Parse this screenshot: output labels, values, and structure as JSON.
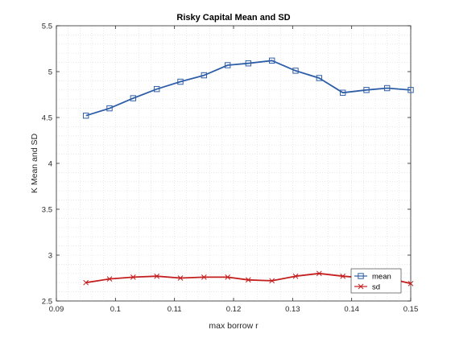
{
  "chart_data": {
    "type": "line",
    "title": "Risky Capital Mean and SD",
    "xlabel": "max borrow r",
    "ylabel": "K Mean and SD",
    "xlim": [
      0.09,
      0.15
    ],
    "ylim": [
      2.5,
      5.5
    ],
    "xticks": [
      "0.09",
      "0.1",
      "0.11",
      "0.12",
      "0.13",
      "0.14",
      "0.15"
    ],
    "yticks": [
      "2.5",
      "3",
      "3.5",
      "4",
      "4.5",
      "5",
      "5.5"
    ],
    "grid": "minor-dotted",
    "legend_position": "bottom-right",
    "x": [
      0.095,
      0.099,
      0.103,
      0.107,
      0.111,
      0.115,
      0.119,
      0.1225,
      0.1265,
      0.1305,
      0.1345,
      0.1385,
      0.1425,
      0.146,
      0.15
    ],
    "series": [
      {
        "name": "mean",
        "color": "#2f5ea8",
        "marker": "square",
        "values": [
          4.52,
          4.6,
          4.71,
          4.81,
          4.89,
          4.96,
          5.07,
          5.09,
          5.12,
          5.01,
          4.93,
          4.77,
          4.8,
          4.82,
          4.8
        ]
      },
      {
        "name": "sd",
        "color": "#c41e1e",
        "marker": "x",
        "values": [
          2.7,
          2.74,
          2.76,
          2.77,
          2.75,
          2.76,
          2.76,
          2.73,
          2.72,
          2.77,
          2.8,
          2.77,
          2.75,
          2.75,
          2.69
        ]
      }
    ]
  }
}
